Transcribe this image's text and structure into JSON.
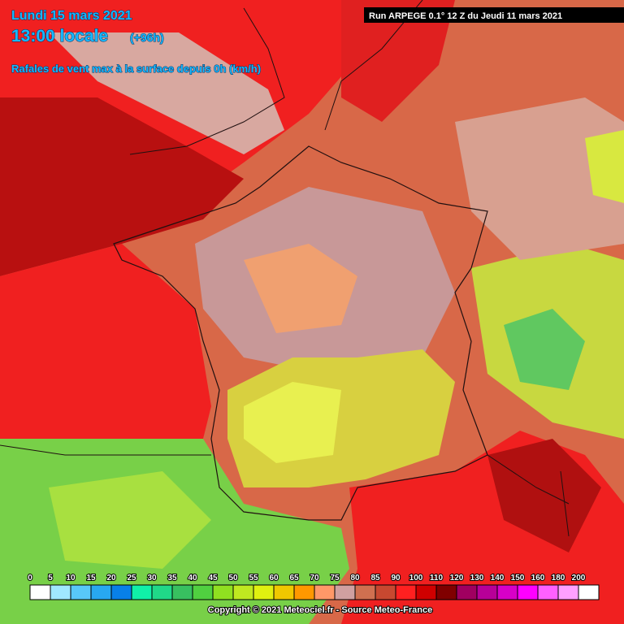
{
  "header": {
    "date": "Lundi 15 mars 2021",
    "time": "13:00 locale",
    "lead": "(+96h)",
    "parameter": "Rafales de vent max à la surface depuis 0h (km/h)",
    "run": "Run ARPEGE 0.1° 12 Z du Jeudi 11 mars 2021"
  },
  "legend": {
    "values": [
      0,
      5,
      10,
      15,
      20,
      25,
      30,
      35,
      40,
      45,
      50,
      55,
      60,
      65,
      70,
      75,
      80,
      85,
      90,
      100,
      110,
      120,
      130,
      140,
      150,
      160,
      180,
      200
    ],
    "colors": [
      "#ffffff",
      "#a0e8ff",
      "#58c8f8",
      "#28a8f0",
      "#0880e8",
      "#10f0a8",
      "#20d888",
      "#38c060",
      "#50d040",
      "#90e020",
      "#c0e820",
      "#e0f010",
      "#f0c800",
      "#ff9800",
      "#ff9868",
      "#d0a0a0",
      "#d07050",
      "#c84830",
      "#ff2020",
      "#d00000",
      "#800000",
      "#a00060",
      "#b80098",
      "#d800c8",
      "#ff00ff",
      "#ff60ff",
      "#ffa0ff",
      "#ffffff"
    ]
  },
  "footer": {
    "copyright": "Copyright © 2021 Meteociel.fr - Source Meteo-France"
  }
}
